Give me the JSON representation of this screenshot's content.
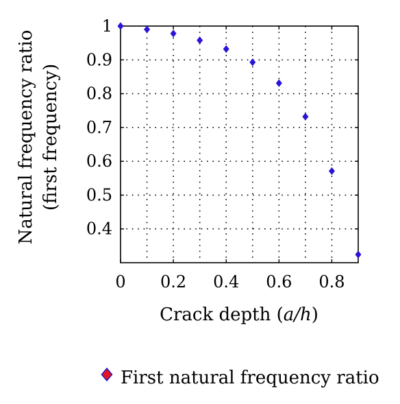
{
  "chart_data": {
    "type": "scatter",
    "xlabel_prefix": "Crack depth (",
    "xlabel_var": "a/h",
    "xlabel_suffix": ")",
    "ylabel_line1": "Natural frequency ratio",
    "ylabel_line2": "(first frequency)",
    "xlim": [
      0,
      0.9
    ],
    "ylim": [
      0.3,
      1.0
    ],
    "x_ticks": [
      0,
      0.2,
      0.4,
      0.6,
      0.8
    ],
    "x_tick_labels": [
      "0",
      "0.2",
      "0.4",
      "0.6",
      "0.8"
    ],
    "y_ticks": [
      0.4,
      0.5,
      0.6,
      0.7,
      0.8,
      0.9,
      1.0
    ],
    "y_tick_labels": [
      "0.4",
      "0.5",
      "0.6",
      "0.7",
      "0.8",
      "0.9",
      "1"
    ],
    "grid": true,
    "grid_x": [
      0.1,
      0.2,
      0.3,
      0.4,
      0.5,
      0.6,
      0.7,
      0.8
    ],
    "grid_y": [
      0.4,
      0.5,
      0.6,
      0.7,
      0.8,
      0.9
    ],
    "legend_position": "bottom",
    "series": [
      {
        "name": "First natural frequency ratio",
        "marker": "diamond",
        "color": "#2b14d6",
        "legend_marker_fill": "#e8141e",
        "legend_marker_edge": "#1a14c8",
        "x": [
          0,
          0.1,
          0.2,
          0.3,
          0.4,
          0.5,
          0.6,
          0.7,
          0.8,
          0.9
        ],
        "y": [
          1.0,
          0.99,
          0.978,
          0.958,
          0.932,
          0.893,
          0.831,
          0.732,
          0.571,
          0.324
        ]
      }
    ]
  }
}
